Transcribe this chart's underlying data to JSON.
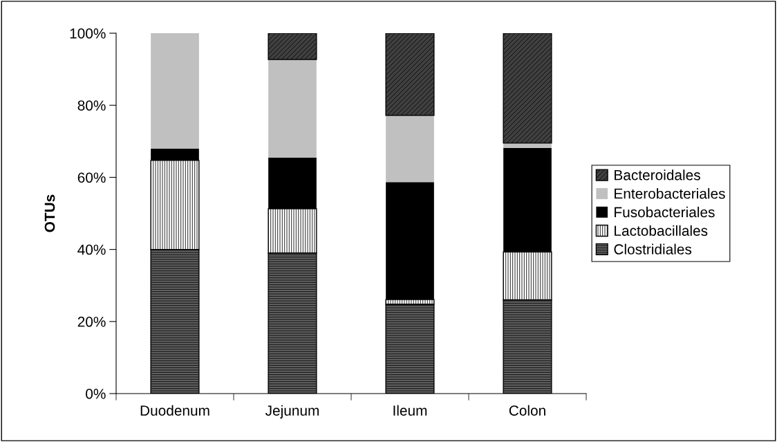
{
  "chart_data": {
    "type": "bar",
    "stacked": true,
    "ylabel": "OTUs",
    "categories": [
      "Duodenum",
      "Jejunum",
      "Ileum",
      "Colon"
    ],
    "series": [
      {
        "name": "Clostridiales",
        "color": "#606060",
        "values": [
          40,
          39,
          24.8,
          26
        ]
      },
      {
        "name": "Lactobacillales",
        "color": "#ffffff",
        "values": [
          24.7,
          12.3,
          1.3,
          13.3
        ]
      },
      {
        "name": "Fusobacteriales",
        "color": "#000000",
        "values": [
          3.3,
          14.2,
          32.6,
          28.9
        ]
      },
      {
        "name": "Enterobacteriales",
        "color": "#c0c0c0",
        "values": [
          32,
          27.2,
          18.5,
          1.3
        ]
      },
      {
        "name": "Bacteroidales",
        "color": "#404040",
        "values": [
          0,
          7.3,
          22.8,
          30.5
        ]
      }
    ],
    "ylim": [
      0,
      100
    ],
    "yticks": [
      {
        "value": 0,
        "label": "0%"
      },
      {
        "value": 20,
        "label": "20%"
      },
      {
        "value": 40,
        "label": "40%"
      },
      {
        "value": 60,
        "label": "60%"
      },
      {
        "value": 80,
        "label": "80%"
      },
      {
        "value": 100,
        "label": "100%"
      }
    ],
    "grid": false,
    "legend": "right"
  }
}
